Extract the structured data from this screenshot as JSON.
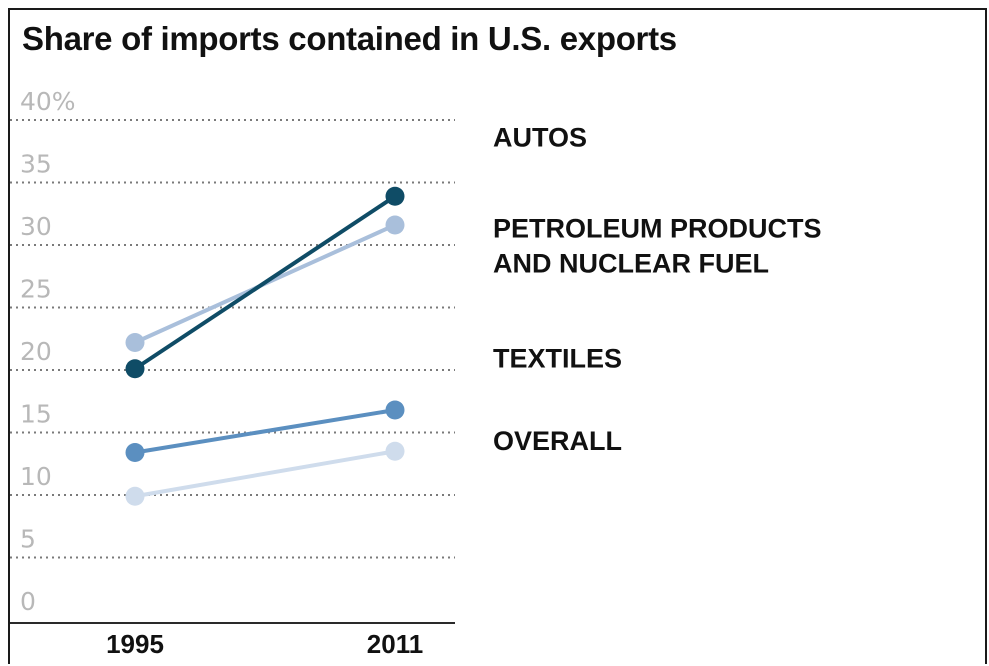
{
  "chart_data": {
    "type": "line",
    "title": "Share of imports contained in U.S. exports",
    "x": [
      "1995",
      "2011"
    ],
    "ylim": [
      0,
      40
    ],
    "yticks": [
      {
        "value": 0,
        "label": "0"
      },
      {
        "value": 5,
        "label": "5"
      },
      {
        "value": 10,
        "label": "10"
      },
      {
        "value": 15,
        "label": "15"
      },
      {
        "value": 20,
        "label": "20"
      },
      {
        "value": 25,
        "label": "25"
      },
      {
        "value": 30,
        "label": "30"
      },
      {
        "value": 35,
        "label": "35"
      },
      {
        "value": 40,
        "label": "40%"
      }
    ],
    "grid": true,
    "series": [
      {
        "name": "AUTOS",
        "label_lines": [
          "AUTOS"
        ],
        "values": [
          20.1,
          33.9
        ],
        "color": "#0f4c66",
        "label_y": 37.9
      },
      {
        "name": "PETROLEUM PRODUCTS AND NUCLEAR FUEL",
        "label_lines": [
          "PETROLEUM PRODUCTS",
          "AND NUCLEAR FUEL"
        ],
        "values": [
          22.2,
          31.6
        ],
        "color": "#a9bfdb",
        "label_y": 30.6
      },
      {
        "name": "TEXTILES",
        "label_lines": [
          "TEXTILES"
        ],
        "values": [
          13.4,
          16.8
        ],
        "color": "#5b8fc0",
        "label_y": 20.2
      },
      {
        "name": "OVERALL",
        "label_lines": [
          "OVERALL"
        ],
        "values": [
          9.9,
          13.5
        ],
        "color": "#cfdcec",
        "label_y": 13.6
      }
    ]
  }
}
